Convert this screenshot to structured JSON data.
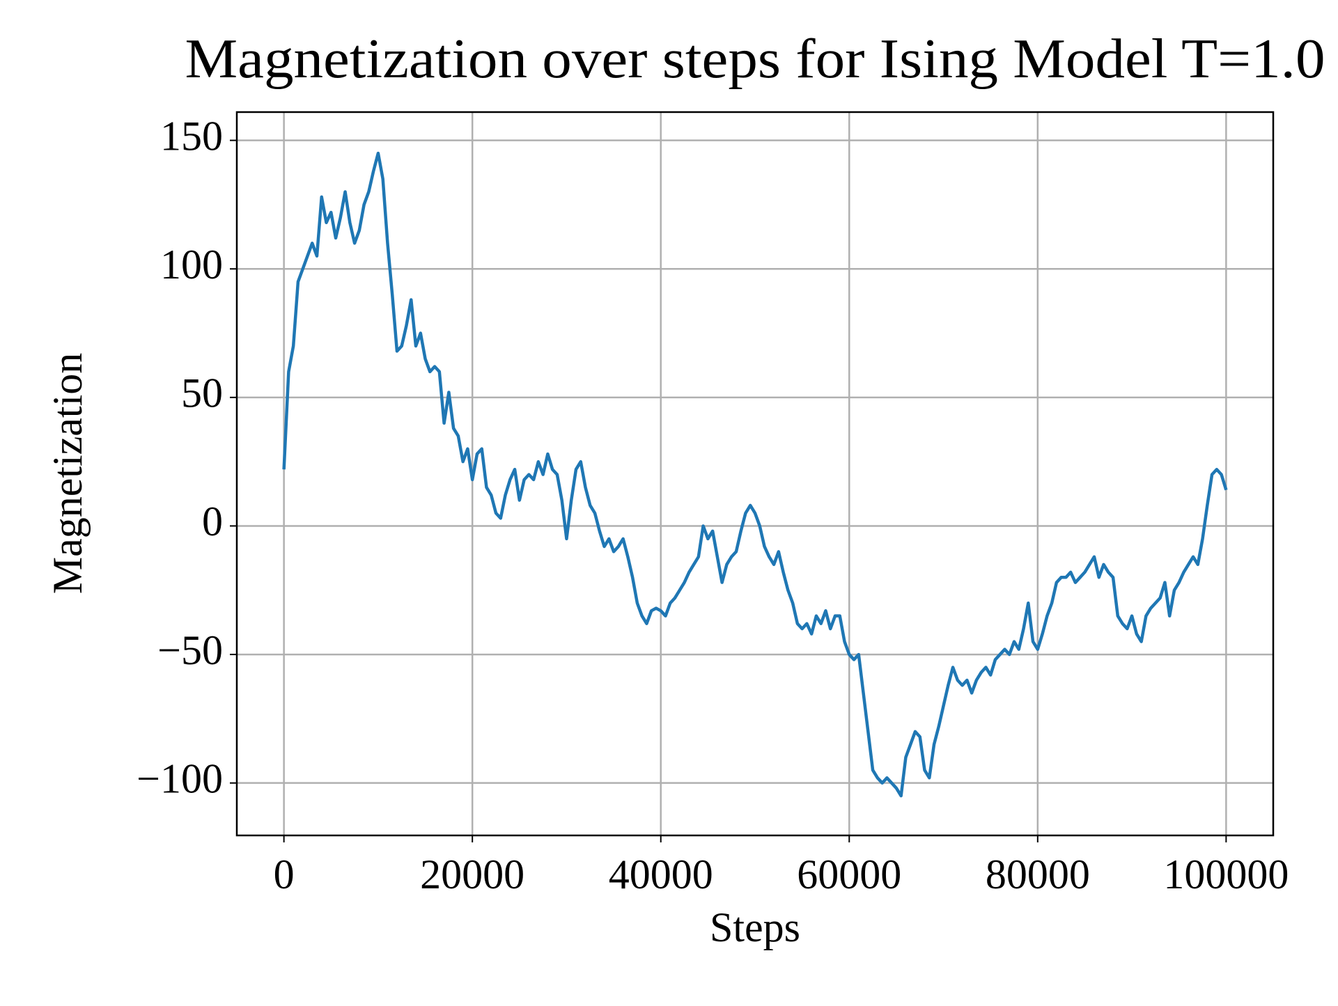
{
  "chart_data": {
    "type": "line",
    "title": "Magnetization over steps for Ising Model T=1.0",
    "x_label": "Steps",
    "y_label": "Magnetization",
    "x": [
      0,
      500,
      1000,
      1500,
      2000,
      2500,
      3000,
      3500,
      4000,
      4500,
      5000,
      5500,
      6000,
      6500,
      7000,
      7500,
      8000,
      8500,
      9000,
      9500,
      10000,
      10500,
      11000,
      11500,
      12000,
      12500,
      13000,
      13500,
      14000,
      14500,
      15000,
      15500,
      16000,
      16500,
      17000,
      17500,
      18000,
      18500,
      19000,
      19500,
      20000,
      20500,
      21000,
      21500,
      22000,
      22500,
      23000,
      23500,
      24000,
      24500,
      25000,
      25500,
      26000,
      26500,
      27000,
      27500,
      28000,
      28500,
      29000,
      29500,
      30000,
      30500,
      31000,
      31500,
      32000,
      32500,
      33000,
      33500,
      34000,
      34500,
      35000,
      35500,
      36000,
      36500,
      37000,
      37500,
      38000,
      38500,
      39000,
      39500,
      40000,
      40500,
      41000,
      41500,
      42000,
      42500,
      43000,
      43500,
      44000,
      44500,
      45000,
      45500,
      46000,
      46500,
      47000,
      47500,
      48000,
      48500,
      49000,
      49500,
      50000,
      50500,
      51000,
      51500,
      52000,
      52500,
      53000,
      53500,
      54000,
      54500,
      55000,
      55500,
      56000,
      56500,
      57000,
      57500,
      58000,
      58500,
      59000,
      59500,
      60000,
      60500,
      61000,
      61500,
      62000,
      62500,
      63000,
      63500,
      64000,
      64500,
      65000,
      65500,
      66000,
      66500,
      67000,
      67500,
      68000,
      68500,
      69000,
      69500,
      70000,
      70500,
      71000,
      71500,
      72000,
      72500,
      73000,
      73500,
      74000,
      74500,
      75000,
      75500,
      76000,
      76500,
      77000,
      77500,
      78000,
      78500,
      79000,
      79500,
      80000,
      80500,
      81000,
      81500,
      82000,
      82500,
      83000,
      83500,
      84000,
      84500,
      85000,
      85500,
      86000,
      86500,
      87000,
      87500,
      88000,
      88500,
      89000,
      89500,
      90000,
      90500,
      91000,
      91500,
      92000,
      92500,
      93000,
      93500,
      94000,
      94500,
      95000,
      95500,
      96000,
      96500,
      97000,
      97500,
      98000,
      98500,
      99000,
      99500,
      100000
    ],
    "series": [
      {
        "name": "Magnetization",
        "color": "#1f77b4",
        "values": [
          22,
          60,
          70,
          95,
          100,
          105,
          110,
          105,
          128,
          118,
          122,
          112,
          120,
          130,
          118,
          110,
          115,
          125,
          130,
          138,
          145,
          135,
          110,
          90,
          68,
          70,
          78,
          88,
          70,
          75,
          65,
          60,
          62,
          60,
          40,
          52,
          38,
          35,
          25,
          30,
          18,
          28,
          30,
          15,
          12,
          5,
          3,
          12,
          18,
          22,
          10,
          18,
          20,
          18,
          25,
          20,
          28,
          22,
          20,
          10,
          -5,
          10,
          22,
          25,
          15,
          8,
          5,
          -2,
          -8,
          -5,
          -10,
          -8,
          -5,
          -12,
          -20,
          -30,
          -35,
          -38,
          -33,
          -32,
          -33,
          -35,
          -30,
          -28,
          -25,
          -22,
          -18,
          -15,
          -12,
          0,
          -5,
          -2,
          -12,
          -22,
          -15,
          -12,
          -10,
          -2,
          5,
          8,
          5,
          0,
          -8,
          -12,
          -15,
          -10,
          -18,
          -25,
          -30,
          -38,
          -40,
          -38,
          -42,
          -35,
          -38,
          -33,
          -40,
          -35,
          -35,
          -45,
          -50,
          -52,
          -50,
          -65,
          -80,
          -95,
          -98,
          -100,
          -98,
          -100,
          -102,
          -105,
          -90,
          -85,
          -80,
          -82,
          -95,
          -98,
          -85,
          -78,
          -70,
          -62,
          -55,
          -60,
          -62,
          -60,
          -65,
          -60,
          -57,
          -55,
          -58,
          -52,
          -50,
          -48,
          -50,
          -45,
          -48,
          -40,
          -30,
          -45,
          -48,
          -42,
          -35,
          -30,
          -22,
          -20,
          -20,
          -18,
          -22,
          -20,
          -18,
          -15,
          -12,
          -20,
          -15,
          -18,
          -20,
          -35,
          -38,
          -40,
          -35,
          -42,
          -45,
          -35,
          -32,
          -30,
          -28,
          -22,
          -35,
          -25,
          -22,
          -18,
          -15,
          -12,
          -15,
          -5,
          8,
          20,
          22,
          20,
          14
        ]
      }
    ],
    "xlim": [
      -5000,
      105000
    ],
    "ylim": [
      -120.4,
      161
    ],
    "xticks": [
      0,
      20000,
      40000,
      60000,
      80000,
      100000
    ],
    "yticks": [
      {
        "value": -100,
        "label": "−100"
      },
      {
        "value": -50,
        "label": "−50"
      },
      0,
      50,
      100,
      150
    ],
    "grid": true
  }
}
